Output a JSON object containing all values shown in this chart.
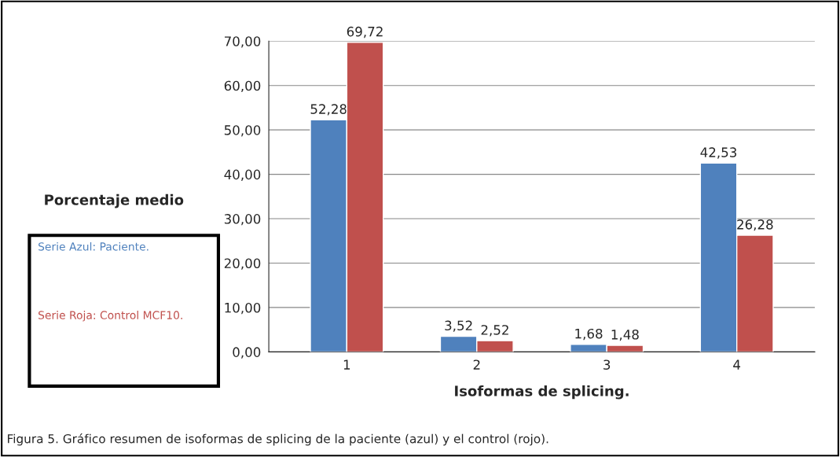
{
  "chart_data": {
    "type": "bar",
    "xlabel": "Isoformas de splicing.",
    "ylabel": "Porcentaje medio",
    "categories": [
      "1",
      "2",
      "3",
      "4"
    ],
    "series": [
      {
        "name": "Serie Azul: Paciente.",
        "color": "#4f81bd",
        "values": [
          52.28,
          3.52,
          1.68,
          42.53
        ],
        "value_labels": [
          "52,28",
          "3,52",
          "1,68",
          "42,53"
        ]
      },
      {
        "name": "Serie Roja: Control MCF10.",
        "color": "#c0504d",
        "values": [
          69.72,
          2.52,
          1.48,
          26.28
        ],
        "value_labels": [
          "69,72",
          "2,52",
          "1,48",
          "26,28"
        ]
      }
    ],
    "ylim": [
      0,
      70
    ],
    "yticks": [
      {
        "value": 0,
        "label": "0,00"
      },
      {
        "value": 10,
        "label": "10,00"
      },
      {
        "value": 20,
        "label": "20,00"
      },
      {
        "value": 30,
        "label": "30,00"
      },
      {
        "value": 40,
        "label": "40,00"
      },
      {
        "value": 50,
        "label": "50,00"
      },
      {
        "value": 60,
        "label": "60,00"
      },
      {
        "value": 70,
        "label": "70,00"
      }
    ],
    "grid": "y",
    "legend": "left",
    "annotations": [
      "Figura 5. Gráfico resumen de isoformas de splicing de la paciente (azul) y el control (rojo)."
    ]
  }
}
